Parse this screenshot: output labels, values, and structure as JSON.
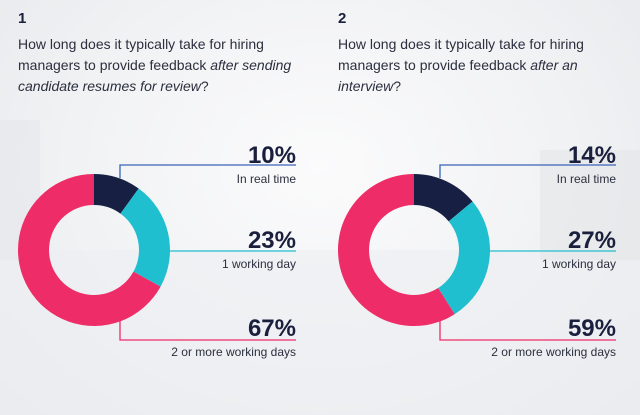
{
  "colors": {
    "navy": "#172043",
    "teal": "#20bfd0",
    "pink": "#ee2d68",
    "text": "#2b2f3e"
  },
  "panels": [
    {
      "number": "1",
      "question_plain": "How long does it typically take for hiring managers to provide feedback ",
      "question_italic": "after sending candidate resumes for review",
      "question_end": "?"
    },
    {
      "number": "2",
      "question_plain": "How long does it typically take for hiring managers to provide feedback ",
      "question_italic": "after an interview",
      "question_end": "?"
    }
  ],
  "chart_data": [
    {
      "type": "pie",
      "donut": true,
      "categories": [
        "In real time",
        "1 working day",
        "2 or more working days"
      ],
      "values": [
        10,
        23,
        67
      ],
      "labels": [
        "10%",
        "23%",
        "67%"
      ],
      "colors": [
        "#172043",
        "#20bfd0",
        "#ee2d68"
      ]
    },
    {
      "type": "pie",
      "donut": true,
      "categories": [
        "In real time",
        "1 working day",
        "2 or more working days"
      ],
      "values": [
        14,
        27,
        59
      ],
      "labels": [
        "14%",
        "27%",
        "59%"
      ],
      "colors": [
        "#172043",
        "#20bfd0",
        "#ee2d68"
      ]
    }
  ]
}
